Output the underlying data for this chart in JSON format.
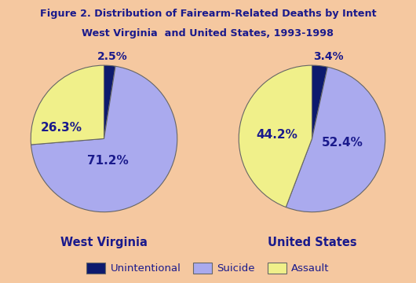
{
  "title_line1": "Figure 2. Distribution of Fairearm-Related Deaths by Intent",
  "title_line2": "West Virginia  and United States, 1993-1998",
  "background_color": "#F5C8A0",
  "label_color": "#1a1a8c",
  "colors_order": [
    "#aaaaee",
    "#f0f08a",
    "#0d1a6e"
  ],
  "wv_values": [
    71.2,
    26.3,
    2.5
  ],
  "us_values": [
    52.4,
    44.2,
    3.4
  ],
  "wv_title": "West Virginia",
  "us_title": "United States",
  "legend_labels": [
    "Unintentional",
    "Suicide",
    "Assault"
  ],
  "legend_colors": [
    "#0d1a6e",
    "#aaaaee",
    "#f0f08a"
  ]
}
